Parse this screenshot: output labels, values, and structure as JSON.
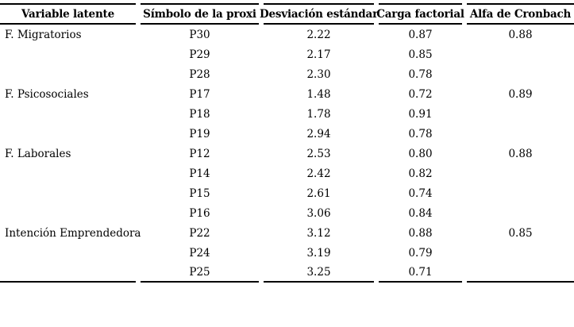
{
  "colors": {
    "background": "#ffffff",
    "text": "#000000",
    "rule": "#000000"
  },
  "table": {
    "columns": [
      {
        "label": "Variable latente"
      },
      {
        "label": "Símbolo de la proxi"
      },
      {
        "label": "Desviación estándar"
      },
      {
        "label": "Carga factorial"
      },
      {
        "label": "Alfa de Cronbach"
      }
    ],
    "rows": [
      [
        "F. Migratorios",
        "P30",
        "2.22",
        "0.87",
        "0.88"
      ],
      [
        "",
        "P29",
        "2.17",
        "0.85",
        ""
      ],
      [
        "",
        "P28",
        "2.30",
        "0.78",
        ""
      ],
      [
        "F. Psicosociales",
        "P17",
        "1.48",
        "0.72",
        "0.89"
      ],
      [
        "",
        "P18",
        "1.78",
        "0.91",
        ""
      ],
      [
        "",
        "P19",
        "2.94",
        "0.78",
        ""
      ],
      [
        "F. Laborales",
        "P12",
        "2.53",
        "0.80",
        "0.88"
      ],
      [
        "",
        "P14",
        "2.42",
        "0.82",
        ""
      ],
      [
        "",
        "P15",
        "2.61",
        "0.74",
        ""
      ],
      [
        "",
        "P16",
        "3.06",
        "0.84",
        ""
      ],
      [
        "Intención Emprendedora",
        "P22",
        "3.12",
        "0.88",
        "0.85"
      ],
      [
        "",
        "P24",
        "3.19",
        "0.79",
        ""
      ],
      [
        "",
        "P25",
        "3.25",
        "0.71",
        ""
      ]
    ]
  },
  "chart_data": {
    "type": "table",
    "title": "",
    "columns": [
      "Variable latente",
      "Símbolo de la proxi",
      "Desviación estándar",
      "Carga factorial",
      "Alfa de Cronbach"
    ],
    "groups": [
      {
        "variable": "F. Migratorios",
        "alfa_de_cronbach": 0.88,
        "items": [
          {
            "simbolo": "P30",
            "desviacion_estandar": 2.22,
            "carga_factorial": 0.87
          },
          {
            "simbolo": "P29",
            "desviacion_estandar": 2.17,
            "carga_factorial": 0.85
          },
          {
            "simbolo": "P28",
            "desviacion_estandar": 2.3,
            "carga_factorial": 0.78
          }
        ]
      },
      {
        "variable": "F. Psicosociales",
        "alfa_de_cronbach": 0.89,
        "items": [
          {
            "simbolo": "P17",
            "desviacion_estandar": 1.48,
            "carga_factorial": 0.72
          },
          {
            "simbolo": "P18",
            "desviacion_estandar": 1.78,
            "carga_factorial": 0.91
          },
          {
            "simbolo": "P19",
            "desviacion_estandar": 2.94,
            "carga_factorial": 0.78
          }
        ]
      },
      {
        "variable": "F. Laborales",
        "alfa_de_cronbach": 0.88,
        "items": [
          {
            "simbolo": "P12",
            "desviacion_estandar": 2.53,
            "carga_factorial": 0.8
          },
          {
            "simbolo": "P14",
            "desviacion_estandar": 2.42,
            "carga_factorial": 0.82
          },
          {
            "simbolo": "P15",
            "desviacion_estandar": 2.61,
            "carga_factorial": 0.74
          },
          {
            "simbolo": "P16",
            "desviacion_estandar": 3.06,
            "carga_factorial": 0.84
          }
        ]
      },
      {
        "variable": "Intención Emprendedora",
        "alfa_de_cronbach": 0.85,
        "items": [
          {
            "simbolo": "P22",
            "desviacion_estandar": 3.12,
            "carga_factorial": 0.88
          },
          {
            "simbolo": "P24",
            "desviacion_estandar": 3.19,
            "carga_factorial": 0.79
          },
          {
            "simbolo": "P25",
            "desviacion_estandar": 3.25,
            "carga_factorial": 0.71
          }
        ]
      }
    ]
  }
}
